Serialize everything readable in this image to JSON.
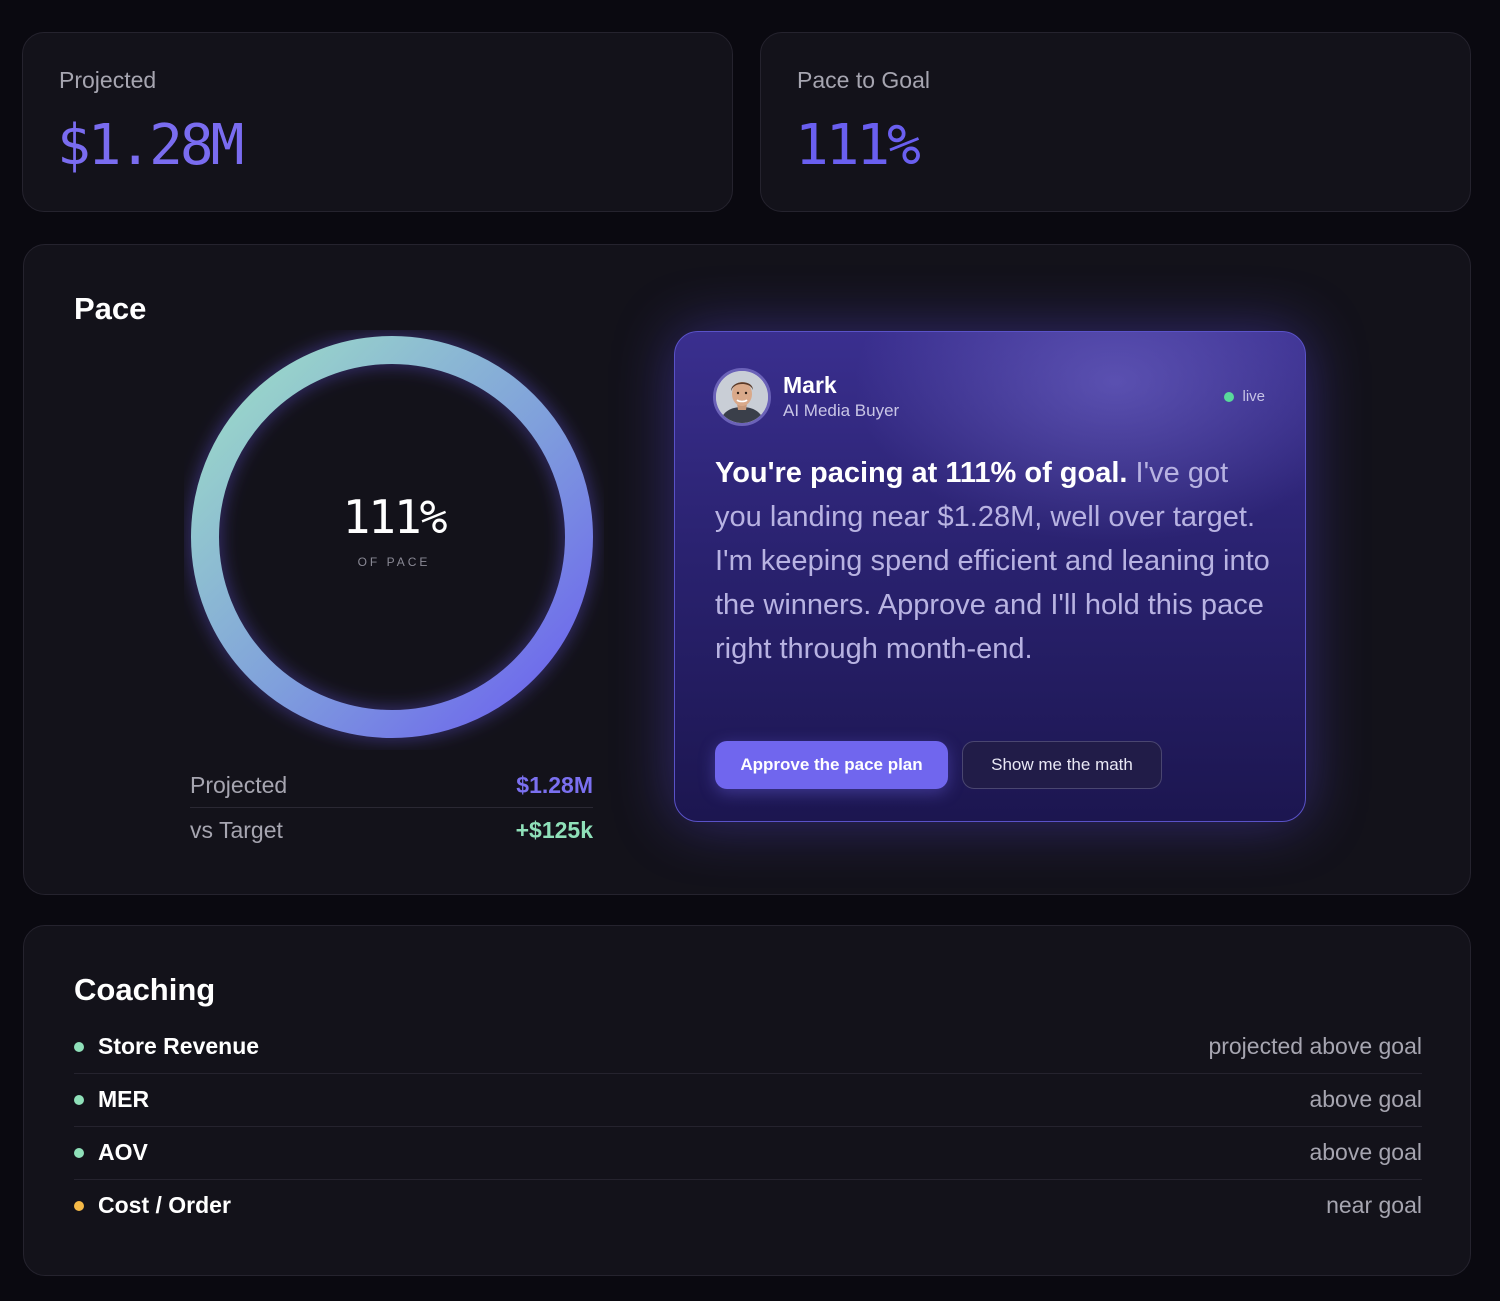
{
  "stats": [
    {
      "label": "Projected",
      "value": "$1.28M"
    },
    {
      "label": "Pace to Goal",
      "value": "111%"
    }
  ],
  "pace": {
    "title": "Pace",
    "ring": {
      "value": "111%",
      "sublabel": "OF PACE",
      "fill_fraction": 1.0
    },
    "summary": [
      {
        "label": "Projected",
        "value": "$1.28M",
        "color": "#7b70f0"
      },
      {
        "label": "vs Target",
        "value": "+$125k",
        "color": "#8fe0b9"
      }
    ]
  },
  "agent": {
    "name": "Mark",
    "role": "AI Media Buyer",
    "status": "live",
    "message_strong": "You're pacing at 111% of goal.",
    "message_rest": " I've got you landing near $1.28M, well over target. I'm keeping spend efficient and leaning into the winners. Approve and I'll hold this pace right through month-end.",
    "primary_button": "Approve the pace plan",
    "secondary_button": "Show me the math",
    "avatar_icon": "person-avatar-icon"
  },
  "coaching": {
    "title": "Coaching",
    "items": [
      {
        "name": "Store Revenue",
        "status": "projected above goal",
        "color": "#8fe0b9"
      },
      {
        "name": "MER",
        "status": "above goal",
        "color": "#8fe0b9"
      },
      {
        "name": "AOV",
        "status": "above goal",
        "color": "#8fe0b9"
      },
      {
        "name": "Cost / Order",
        "status": "near goal",
        "color": "#f5b947"
      }
    ]
  },
  "colors": {
    "accent": "#7066ee",
    "good": "#8fe0b9",
    "warn": "#f5b947",
    "ring_start": "#9bdcc4",
    "ring_end": "#6a5cf0"
  }
}
